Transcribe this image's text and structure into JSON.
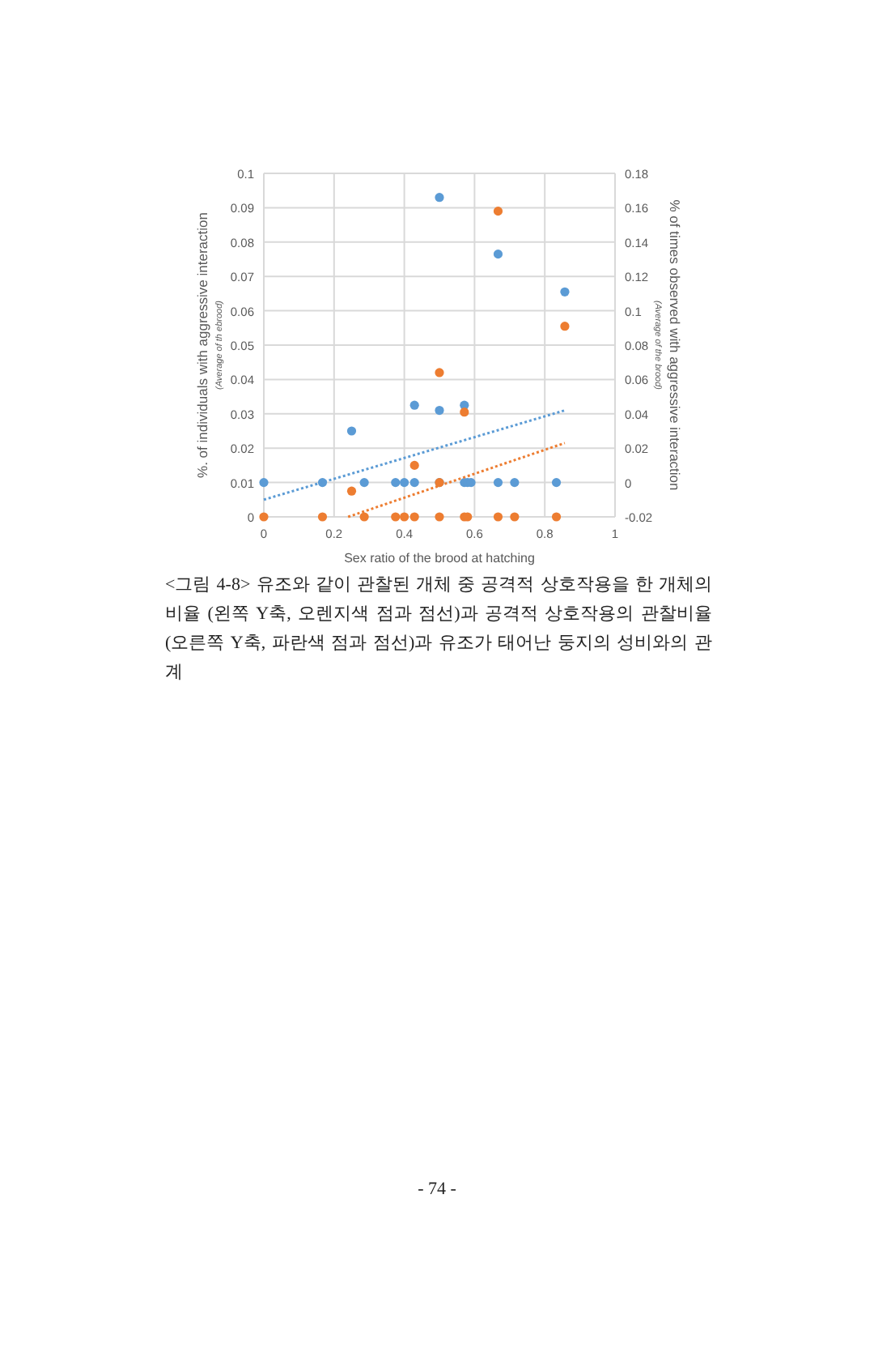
{
  "chart_data": {
    "type": "scatter",
    "xlabel": "Sex ratio of the brood at hatching",
    "ylabel": "%. of individuals with aggressive interaction",
    "y2label": "% of times observed with aggressive interaction",
    "xlim": [
      0,
      1
    ],
    "xticks": [
      0,
      0.2,
      0.4,
      0.6,
      0.8,
      1
    ],
    "ylim": [
      0,
      0.1
    ],
    "yticks": [
      0,
      0.01,
      0.02,
      0.03,
      0.04,
      0.05,
      0.06,
      0.07,
      0.08,
      0.09,
      0.1
    ],
    "y2lim": [
      -0.02,
      0.18
    ],
    "y2ticks": [
      -0.02,
      0,
      0.02,
      0.04,
      0.06,
      0.08,
      0.1,
      0.12,
      0.14,
      0.16,
      0.18
    ],
    "grid": true,
    "marker": "circle",
    "series": [
      {
        "axis": "y2",
        "color": "#5b9bd5",
        "x": [
          0,
          0.167,
          0.25,
          0.286,
          0.375,
          0.4,
          0.429,
          0.429,
          0.5,
          0.5,
          0.5,
          0.571,
          0.571,
          0.58,
          0.59,
          0.667,
          0.667,
          0.714,
          0.833,
          0.857
        ],
        "values": [
          0,
          0,
          0.03,
          0,
          0,
          0,
          0,
          0.045,
          0.042,
          0.166,
          0,
          0.045,
          0,
          0,
          0,
          0.133,
          0,
          0,
          0,
          0.111
        ]
      },
      {
        "axis": "y",
        "color": "#ed7d31",
        "x": [
          0,
          0.167,
          0.25,
          0.286,
          0.375,
          0.4,
          0.429,
          0.429,
          0.5,
          0.5,
          0.5,
          0.571,
          0.571,
          0.58,
          0.667,
          0.667,
          0.714,
          0.833,
          0.857
        ],
        "values": [
          0,
          0,
          0.0075,
          0,
          0,
          0,
          0.015,
          0,
          0.042,
          0.01,
          0,
          0.0305,
          0,
          0,
          0.089,
          0,
          0,
          0,
          0.0555
        ]
      },
      {
        "type": "line",
        "axis": "y2",
        "color": "#5b9bd5",
        "line_style": "dotted",
        "marker": "none",
        "x": [
          0,
          0.857
        ],
        "values": [
          -0.01,
          0.042
        ]
      },
      {
        "type": "line",
        "axis": "y",
        "color": "#ed7d31",
        "line_style": "dotted",
        "marker": "none",
        "x": [
          0.24,
          0.857
        ],
        "values": [
          0,
          0.0215
        ]
      }
    ],
    "annotations": [
      "(Average of th ebrood)",
      "(Average of the brood)",
      "<그림 4-8> 유조와 같이 관찰된 개체 중 공격적 상호작용을 한 개체의 비율 (왼쪽 Y축, 오렌지색 점과 점선)과 공격적 상호작용의 관찰비율(오른쪽 Y축, 파란색 점과 점선)과 유조가 태어난 둥지의 성비와의 관계",
      "- 74 -"
    ]
  }
}
